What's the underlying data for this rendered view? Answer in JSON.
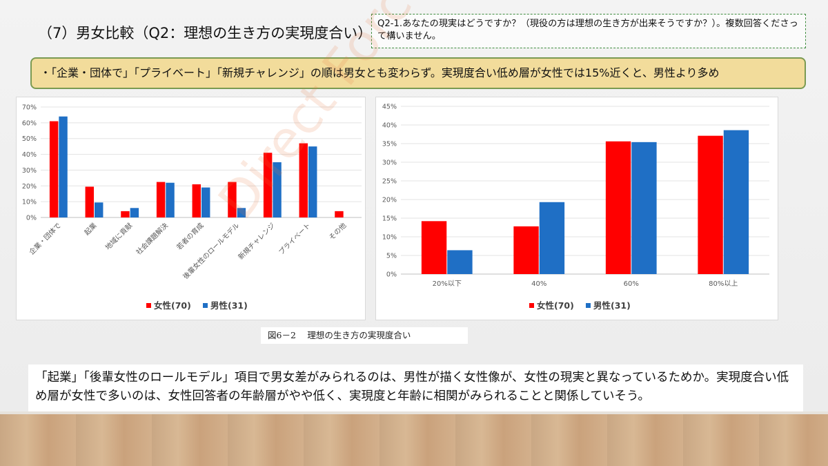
{
  "slide": {
    "title": "（7）男女比較（Q2：理想の生き方の実現度合い）",
    "question": "Q2-1.あなたの現実はどうですか？（現役の方は理想の生き方が出来そうですか？）。複数回答くださって構いません。",
    "banner": "・「企業・団体で」「プライベート」「新規チャレンジ」の順は男女とも変わらず。実現度合い低め層が女性では15%近くと、男性より多め",
    "caption": "図6－2　 理想の生き方の実現度合い",
    "note": "「起業」「後輩女性のロールモデル」項目で男女差がみられるのは、男性が描く女性像が、女性の現実と異なっているためか。実現度合い低め層が女性で多いのは、女性回答者の年齢層がやや低く、実現度と年齢に相関がみられることと関係していそう。",
    "watermark": "Direct Force"
  },
  "colors": {
    "female": "#ff0000",
    "male": "#1f6fc5"
  },
  "chart_data": [
    {
      "type": "bar",
      "categories": [
        "企業・団体で",
        "起業",
        "地域に貢献",
        "社会課題解決",
        "若者の育成",
        "後輩女性のロールモデル",
        "新規チャレンジ",
        "プライベート",
        "その他"
      ],
      "series": [
        {
          "name": "女性(70)",
          "values": [
            61,
            19.5,
            4,
            22.5,
            21,
            22.5,
            41,
            47,
            4
          ]
        },
        {
          "name": "男性(31)",
          "values": [
            64,
            9.5,
            6,
            22,
            19,
            6,
            35,
            45,
            0
          ]
        }
      ],
      "ylim": [
        0,
        70
      ],
      "yticks": [
        "0%",
        "10%",
        "20%",
        "30%",
        "40%",
        "50%",
        "60%",
        "70%"
      ],
      "legend": "bottom",
      "grid": true
    },
    {
      "type": "bar",
      "categories": [
        "20%以下",
        "40%",
        "60%",
        "80%以上"
      ],
      "series": [
        {
          "name": "女性(70)",
          "values": [
            14.2,
            12.8,
            35.6,
            37.1
          ]
        },
        {
          "name": "男性(31)",
          "values": [
            6.4,
            19.3,
            35.4,
            38.6
          ]
        }
      ],
      "ylim": [
        0,
        45
      ],
      "yticks": [
        "0%",
        "5%",
        "10%",
        "15%",
        "20%",
        "25%",
        "30%",
        "35%",
        "40%",
        "45%"
      ],
      "legend": "bottom",
      "grid": true
    }
  ]
}
